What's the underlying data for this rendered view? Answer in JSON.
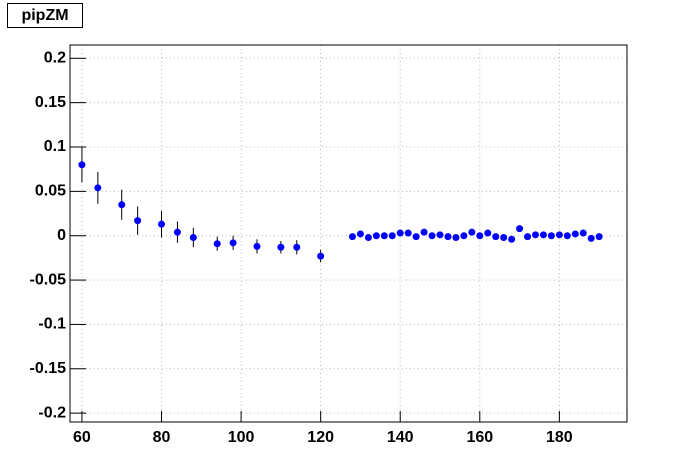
{
  "chart_data": {
    "type": "scatter",
    "title": "pipZM",
    "series": [
      {
        "color": "#0000ff",
        "x": [
          60,
          64,
          70,
          74,
          80,
          84,
          88,
          94,
          98,
          104,
          110,
          114,
          120,
          128,
          130,
          132,
          134,
          136,
          138,
          140,
          142,
          144,
          146,
          148,
          150,
          152,
          154,
          156,
          158,
          160,
          162,
          164,
          166,
          168,
          170,
          172,
          174,
          176,
          178,
          180,
          182,
          184,
          186,
          188,
          190
        ],
        "values": [
          0.08,
          0.054,
          0.035,
          0.017,
          0.013,
          0.004,
          -0.002,
          -0.009,
          -0.008,
          -0.012,
          -0.013,
          -0.013,
          -0.023,
          -0.001,
          0.002,
          -0.002,
          0,
          0,
          0,
          0.003,
          0.003,
          -0.001,
          0.004,
          0,
          0.001,
          -0.001,
          -0.002,
          0,
          0.004,
          0,
          0.003,
          -0.001,
          -0.002,
          -0.004,
          0.008,
          -0.001,
          0.001,
          0.001,
          0,
          0.001,
          0,
          0.002,
          0.003,
          -0.003,
          -0.001
        ],
        "errors": [
          0.02,
          0.018,
          0.017,
          0.016,
          0.015,
          0.012,
          0.011,
          0.008,
          0.008,
          0.008,
          0.007,
          0.008,
          0.007,
          0.002,
          0.002,
          0.002,
          0.002,
          0.002,
          0.002,
          0.002,
          0.002,
          0.002,
          0.002,
          0.002,
          0.002,
          0.002,
          0.002,
          0.002,
          0.002,
          0.002,
          0.002,
          0.002,
          0.002,
          0.002,
          0.002,
          0.002,
          0.002,
          0.002,
          0.002,
          0.002,
          0.002,
          0.002,
          0.002,
          0.002,
          0.002
        ]
      }
    ],
    "xlim": [
      57,
      197
    ],
    "ylim": [
      -0.21,
      0.215
    ],
    "xticks": [
      60,
      80,
      100,
      120,
      140,
      160,
      180
    ],
    "yticks": [
      -0.2,
      -0.15,
      -0.1,
      -0.05,
      0,
      0.05,
      0.1,
      0.15,
      0.2
    ],
    "grid": true
  }
}
